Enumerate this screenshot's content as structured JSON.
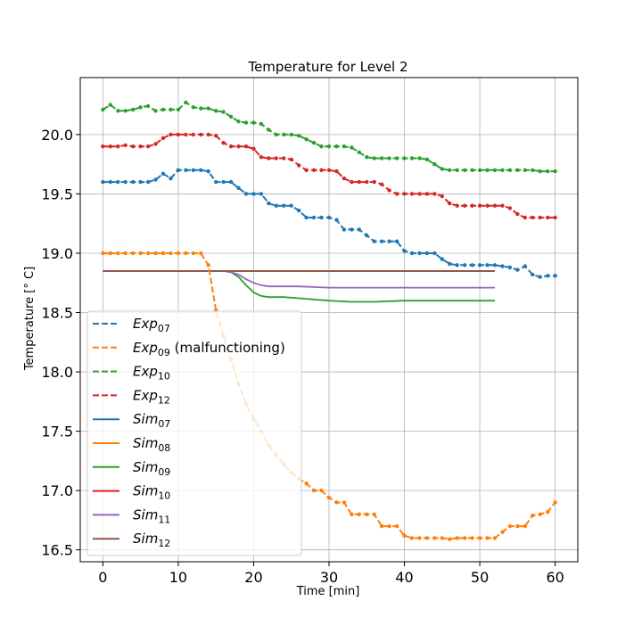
{
  "chart_data": {
    "type": "line",
    "title": "Temperature for Level 2",
    "xlabel": "Time [min]",
    "ylabel": "Temperature [° C]",
    "xlim": [
      -3,
      63
    ],
    "ylim": [
      16.4,
      20.48
    ],
    "xticks": [
      0,
      10,
      20,
      30,
      40,
      50,
      60
    ],
    "yticks": [
      16.5,
      17.0,
      17.5,
      18.0,
      18.5,
      19.0,
      19.5,
      20.0
    ],
    "ytick_format": 1,
    "grid": true,
    "legend_position": "lower-left",
    "series": [
      {
        "name": "Exp",
        "sub": "07",
        "suffix": "",
        "style": "dashed",
        "markers": true,
        "color": "#1f77b4",
        "x": [
          0,
          1,
          2,
          3,
          4,
          5,
          6,
          7,
          8,
          9,
          10,
          11,
          12,
          13,
          14,
          15,
          16,
          17,
          18,
          19,
          20,
          21,
          22,
          23,
          24,
          25,
          26,
          27,
          28,
          29,
          30,
          31,
          32,
          33,
          34,
          35,
          36,
          37,
          38,
          39,
          40,
          41,
          42,
          43,
          44,
          45,
          46,
          47,
          48,
          49,
          50,
          51,
          52,
          53,
          54,
          55,
          56,
          57,
          58,
          59,
          60
        ],
        "y": [
          19.6,
          19.6,
          19.6,
          19.6,
          19.6,
          19.6,
          19.6,
          19.62,
          19.67,
          19.63,
          19.7,
          19.7,
          19.7,
          19.7,
          19.69,
          19.6,
          19.6,
          19.6,
          19.55,
          19.5,
          19.5,
          19.5,
          19.42,
          19.4,
          19.4,
          19.4,
          19.36,
          19.3,
          19.3,
          19.3,
          19.3,
          19.28,
          19.2,
          19.2,
          19.2,
          19.15,
          19.1,
          19.1,
          19.1,
          19.1,
          19.02,
          19.0,
          19.0,
          19.0,
          19.0,
          18.95,
          18.91,
          18.9,
          18.9,
          18.9,
          18.9,
          18.9,
          18.9,
          18.89,
          18.88,
          18.86,
          18.89,
          18.82,
          18.8,
          18.81,
          18.81
        ]
      },
      {
        "name": "Exp",
        "sub": "09",
        "suffix": " (malfunctioning)",
        "style": "dashed",
        "markers": true,
        "color": "#ff7f0e",
        "x": [
          0,
          1,
          2,
          3,
          4,
          5,
          6,
          7,
          8,
          9,
          10,
          11,
          12,
          13,
          14,
          15,
          16,
          17,
          18,
          19,
          20,
          21,
          22,
          23,
          24,
          25,
          26,
          27,
          28,
          29,
          30,
          31,
          32,
          33,
          34,
          35,
          36,
          37,
          38,
          39,
          40,
          41,
          42,
          43,
          44,
          45,
          46,
          47,
          48,
          49,
          50,
          51,
          52,
          53,
          54,
          55,
          56,
          57,
          58,
          59,
          60
        ],
        "y": [
          19.0,
          19.0,
          19.0,
          19.0,
          19.0,
          19.0,
          19.0,
          19.0,
          19.0,
          19.0,
          19.0,
          19.0,
          19.0,
          19.0,
          18.9,
          18.52,
          18.3,
          18.1,
          17.9,
          17.73,
          17.6,
          17.5,
          17.38,
          17.3,
          17.22,
          17.15,
          17.1,
          17.06,
          17.0,
          17.0,
          16.94,
          16.9,
          16.9,
          16.8,
          16.8,
          16.8,
          16.8,
          16.7,
          16.7,
          16.7,
          16.62,
          16.6,
          16.6,
          16.6,
          16.6,
          16.6,
          16.59,
          16.6,
          16.6,
          16.6,
          16.6,
          16.6,
          16.6,
          16.65,
          16.7,
          16.7,
          16.7,
          16.79,
          16.8,
          16.82,
          16.9
        ]
      },
      {
        "name": "Exp",
        "sub": "10",
        "suffix": "",
        "style": "dashed",
        "markers": true,
        "color": "#2ca02c",
        "x": [
          0,
          1,
          2,
          3,
          4,
          5,
          6,
          7,
          8,
          9,
          10,
          11,
          12,
          13,
          14,
          15,
          16,
          17,
          18,
          19,
          20,
          21,
          22,
          23,
          24,
          25,
          26,
          27,
          28,
          29,
          30,
          31,
          32,
          33,
          34,
          35,
          36,
          37,
          38,
          39,
          40,
          41,
          42,
          43,
          44,
          45,
          46,
          47,
          48,
          49,
          50,
          51,
          52,
          53,
          54,
          55,
          56,
          57,
          58,
          59,
          60
        ],
        "y": [
          20.21,
          20.25,
          20.2,
          20.2,
          20.21,
          20.23,
          20.24,
          20.2,
          20.21,
          20.21,
          20.21,
          20.27,
          20.23,
          20.22,
          20.22,
          20.2,
          20.19,
          20.15,
          20.11,
          20.1,
          20.1,
          20.09,
          20.04,
          20.0,
          20.0,
          20.0,
          19.99,
          19.96,
          19.93,
          19.9,
          19.9,
          19.9,
          19.9,
          19.89,
          19.85,
          19.81,
          19.8,
          19.8,
          19.8,
          19.8,
          19.8,
          19.8,
          19.8,
          19.79,
          19.75,
          19.71,
          19.7,
          19.7,
          19.7,
          19.7,
          19.7,
          19.7,
          19.7,
          19.7,
          19.7,
          19.7,
          19.7,
          19.7,
          19.69,
          19.69,
          19.69
        ]
      },
      {
        "name": "Exp",
        "sub": "12",
        "suffix": "",
        "style": "dashed",
        "markers": true,
        "color": "#d62728",
        "x": [
          0,
          1,
          2,
          3,
          4,
          5,
          6,
          7,
          8,
          9,
          10,
          11,
          12,
          13,
          14,
          15,
          16,
          17,
          18,
          19,
          20,
          21,
          22,
          23,
          24,
          25,
          26,
          27,
          28,
          29,
          30,
          31,
          32,
          33,
          34,
          35,
          36,
          37,
          38,
          39,
          40,
          41,
          42,
          43,
          44,
          45,
          46,
          47,
          48,
          49,
          50,
          51,
          52,
          53,
          54,
          55,
          56,
          57,
          58,
          59,
          60
        ],
        "y": [
          19.9,
          19.9,
          19.9,
          19.91,
          19.9,
          19.9,
          19.9,
          19.92,
          19.97,
          20.0,
          20.0,
          20.0,
          20.0,
          20.0,
          20.0,
          19.99,
          19.93,
          19.9,
          19.9,
          19.9,
          19.88,
          19.81,
          19.8,
          19.8,
          19.8,
          19.79,
          19.74,
          19.7,
          19.7,
          19.7,
          19.7,
          19.69,
          19.63,
          19.6,
          19.6,
          19.6,
          19.6,
          19.58,
          19.53,
          19.5,
          19.5,
          19.5,
          19.5,
          19.5,
          19.5,
          19.48,
          19.42,
          19.4,
          19.4,
          19.4,
          19.4,
          19.4,
          19.4,
          19.4,
          19.38,
          19.33,
          19.3,
          19.3,
          19.3,
          19.3,
          19.3
        ]
      },
      {
        "name": "Sim",
        "sub": "07",
        "suffix": "",
        "style": "solid",
        "markers": false,
        "color": "#1f77b4",
        "x": [
          0,
          17,
          52
        ],
        "y": [
          18.85,
          18.85,
          18.85
        ]
      },
      {
        "name": "Sim",
        "sub": "08",
        "suffix": "",
        "style": "solid",
        "markers": false,
        "color": "#ff7f0e",
        "x": [
          0,
          17,
          52
        ],
        "y": [
          18.85,
          18.85,
          18.85
        ]
      },
      {
        "name": "Sim",
        "sub": "09",
        "suffix": "",
        "style": "solid",
        "markers": false,
        "color": "#2ca02c",
        "x": [
          0,
          16,
          17,
          18,
          19,
          20,
          21,
          22,
          24,
          26,
          28,
          30,
          33,
          36,
          40,
          45,
          52
        ],
        "y": [
          18.85,
          18.85,
          18.84,
          18.8,
          18.73,
          18.67,
          18.64,
          18.63,
          18.63,
          18.62,
          18.61,
          18.6,
          18.59,
          18.59,
          18.6,
          18.6,
          18.6
        ]
      },
      {
        "name": "Sim",
        "sub": "10",
        "suffix": "",
        "style": "solid",
        "markers": false,
        "color": "#d62728",
        "x": [
          0,
          17,
          52
        ],
        "y": [
          18.85,
          18.85,
          18.85
        ]
      },
      {
        "name": "Sim",
        "sub": "11",
        "suffix": "",
        "style": "solid",
        "markers": false,
        "color": "#9467bd",
        "x": [
          0,
          16,
          17,
          18,
          19,
          20,
          21,
          22,
          24,
          26,
          30,
          35,
          40,
          45,
          52
        ],
        "y": [
          18.85,
          18.85,
          18.84,
          18.82,
          18.78,
          18.75,
          18.73,
          18.72,
          18.72,
          18.72,
          18.71,
          18.71,
          18.71,
          18.71,
          18.71
        ]
      },
      {
        "name": "Sim",
        "sub": "12",
        "suffix": "",
        "style": "solid",
        "markers": false,
        "color": "#8c564b",
        "x": [
          0,
          17,
          52
        ],
        "y": [
          18.85,
          18.85,
          18.85
        ]
      }
    ]
  }
}
